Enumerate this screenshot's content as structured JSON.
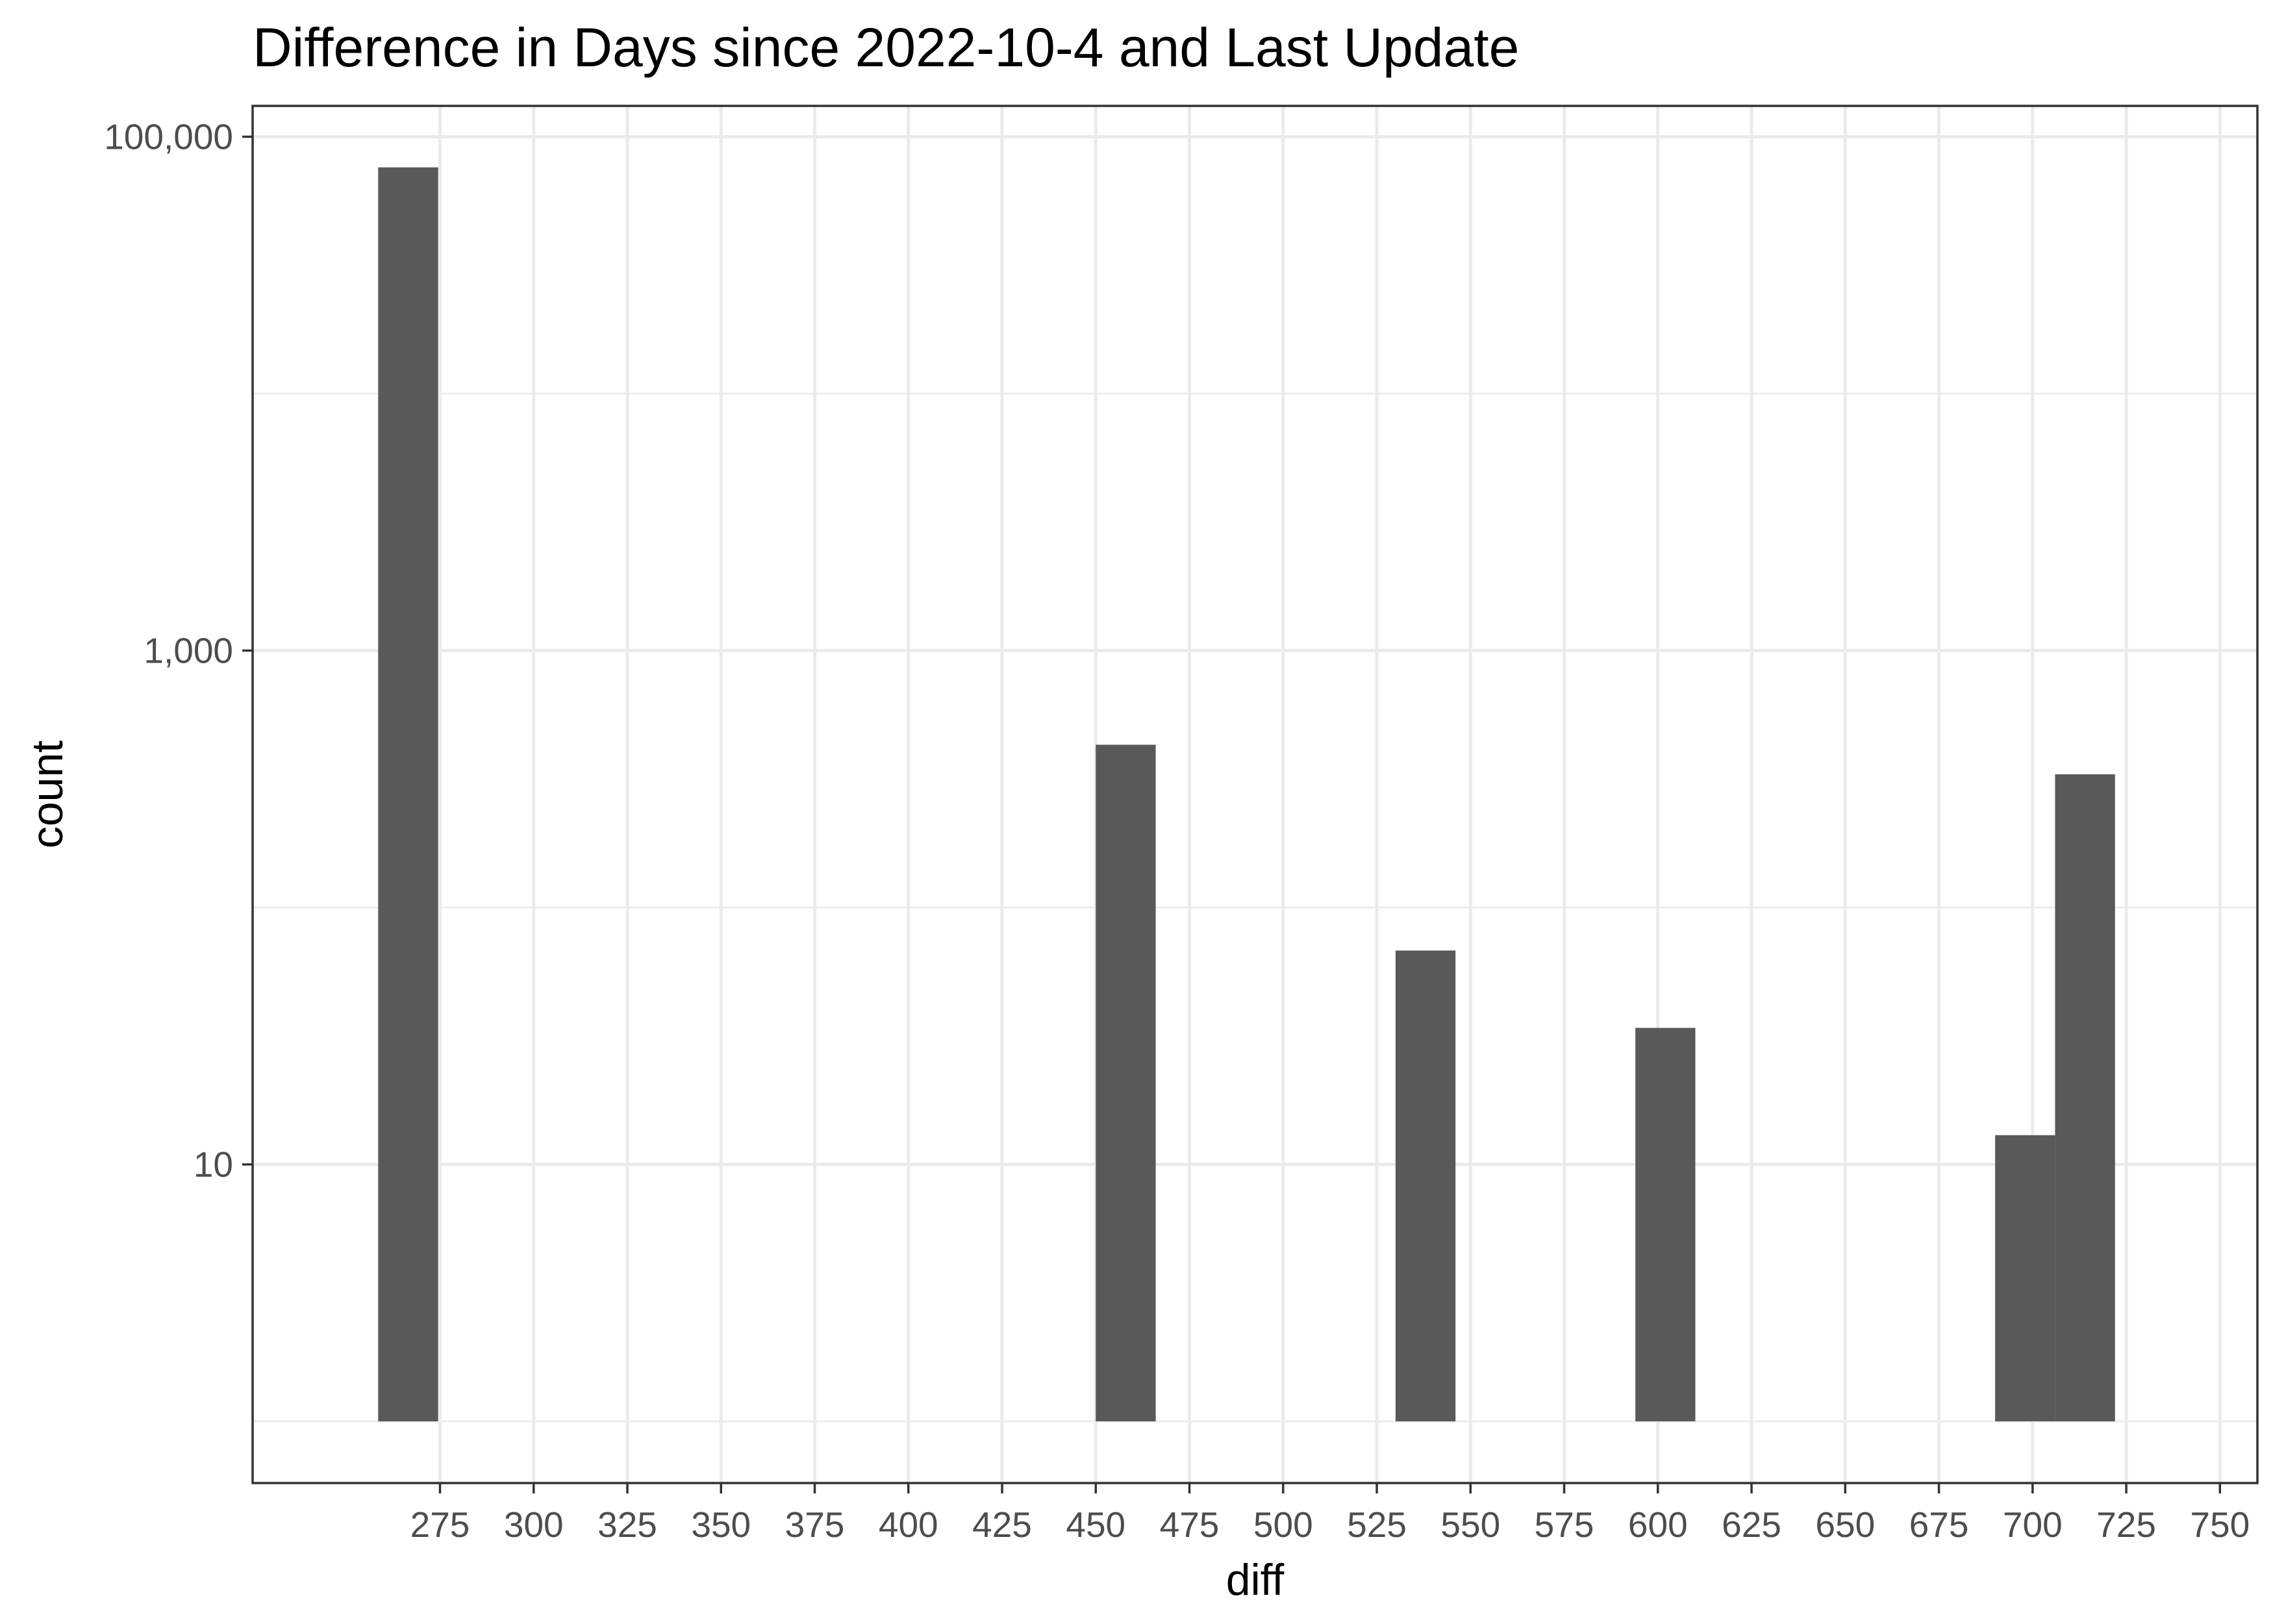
{
  "chart_data": {
    "type": "bar",
    "title": "Difference in Days since 2022-10-4 and Last Update",
    "xlabel": "diff",
    "ylabel": "count",
    "y_scale": "log10",
    "xlim": [
      225,
      760
    ],
    "ylim_log10": [
      -0.24,
      5.12
    ],
    "x_ticks": [
      275,
      300,
      325,
      350,
      375,
      400,
      425,
      450,
      475,
      500,
      525,
      550,
      575,
      600,
      625,
      650,
      675,
      700,
      725,
      750
    ],
    "x_tick_labels": [
      "275",
      "300",
      "325",
      "350",
      "375",
      "400",
      "425",
      "450",
      "475",
      "500",
      "525",
      "550",
      "575",
      "600",
      "625",
      "650",
      "675",
      "700",
      "725",
      "750"
    ],
    "y_ticks": [
      10,
      1000,
      100000
    ],
    "y_tick_labels": [
      "10",
      "1,000",
      "100,000"
    ],
    "y_minor_ticks": [
      1,
      100,
      10000
    ],
    "bar_baseline": 1,
    "grid": true,
    "legend": "none",
    "bar_color": "#595959",
    "series": [
      {
        "bins": [
          {
            "x_start": 258.5,
            "x_end": 274.5,
            "count": 76000
          },
          {
            "x_start": 450,
            "x_end": 466,
            "count": 430
          },
          {
            "x_start": 530,
            "x_end": 546,
            "count": 68
          },
          {
            "x_start": 594,
            "x_end": 610,
            "count": 34
          },
          {
            "x_start": 690,
            "x_end": 706,
            "count": 13
          },
          {
            "x_start": 706,
            "x_end": 722,
            "count": 330
          }
        ]
      }
    ]
  }
}
